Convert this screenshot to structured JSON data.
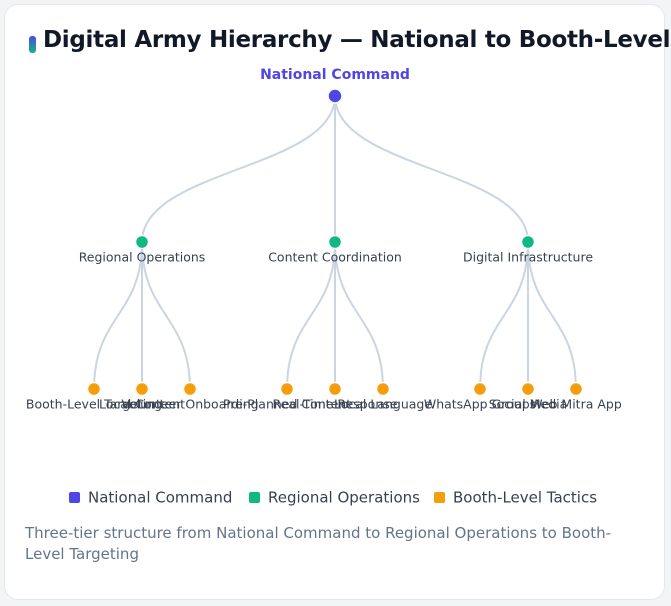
{
  "title": "Digital Army Hierarchy — National to Booth-Level",
  "tree": {
    "label": "National Command",
    "children": [
      {
        "label": "Regional Operations",
        "children": [
          {
            "label": "Booth-Level Targeting"
          },
          {
            "label": "Local Content"
          },
          {
            "label": "Volunteer Onboarding"
          }
        ]
      },
      {
        "label": "Content Coordination",
        "children": [
          {
            "label": "Pre-Planned Content"
          },
          {
            "label": "Real-Time Response"
          },
          {
            "label": "Local Language"
          }
        ]
      },
      {
        "label": "Digital Infrastructure",
        "children": [
          {
            "label": "WhatsApp Groups"
          },
          {
            "label": "Social Media"
          },
          {
            "label": "Web Mitra App"
          }
        ]
      }
    ]
  },
  "legend": [
    {
      "label": "National Command",
      "color": "#4f46e5"
    },
    {
      "label": "Regional Operations",
      "color": "#10b981"
    },
    {
      "label": "Booth-Level Tactics",
      "color": "#f59e0b"
    }
  ],
  "caption": "Three-tier structure from National Command to Regional Operations to Booth-Level Targeting"
}
